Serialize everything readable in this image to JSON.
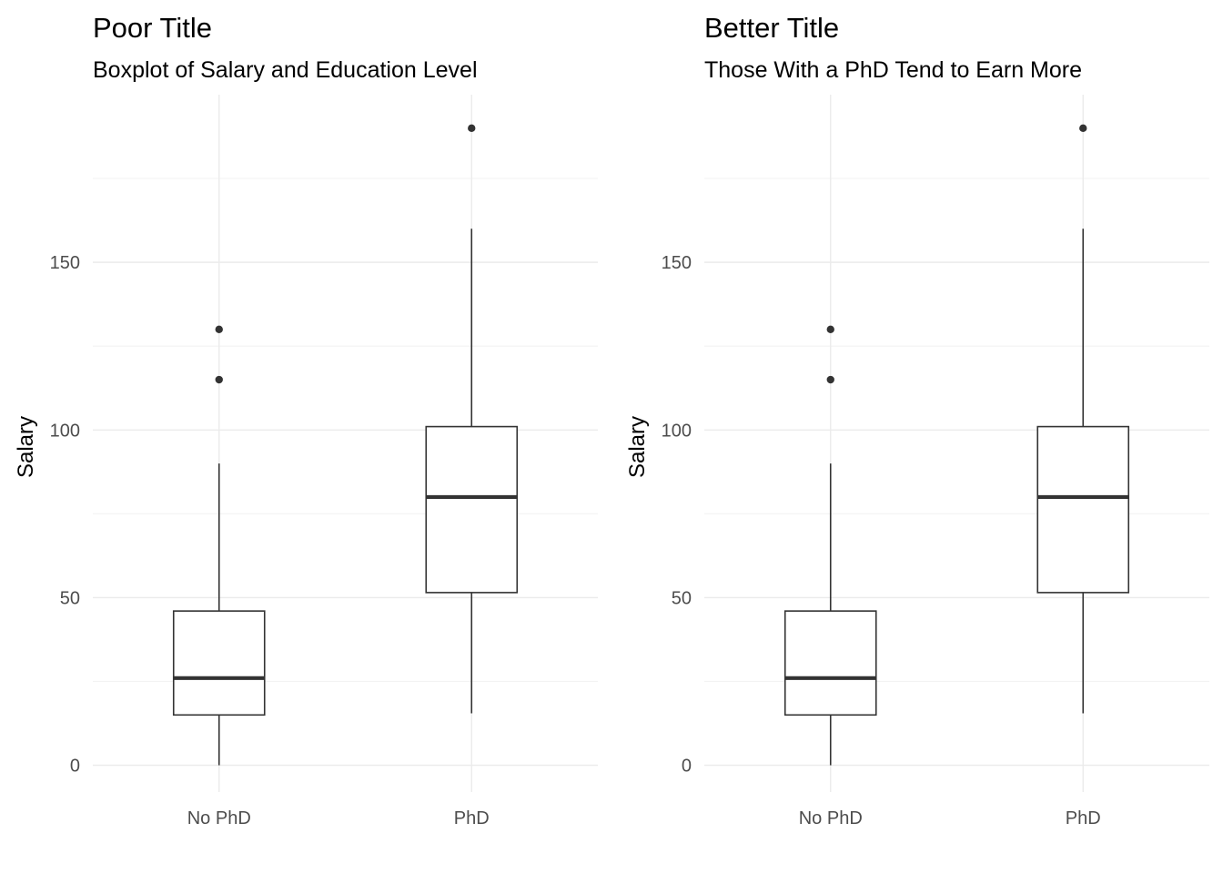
{
  "chart_data": [
    {
      "type": "box",
      "title": "Poor Title",
      "subtitle": "Boxplot of Salary and Education Level",
      "xlabel": "",
      "ylabel": "Salary",
      "categories": [
        "No PhD",
        "PhD"
      ],
      "yticks": [
        0,
        50,
        100,
        150
      ],
      "ylim": [
        -8,
        200
      ],
      "grid": true,
      "boxes": [
        {
          "category": "No PhD",
          "whisker_low": 0,
          "q1": 15,
          "median": 26,
          "q3": 46,
          "whisker_high": 90,
          "outliers": [
            115,
            130
          ]
        },
        {
          "category": "PhD",
          "whisker_low": 15.5,
          "q1": 51.5,
          "median": 80,
          "q3": 101,
          "whisker_high": 160,
          "outliers": [
            190
          ]
        }
      ]
    },
    {
      "type": "box",
      "title": "Better Title",
      "subtitle": "Those With a PhD Tend to Earn More",
      "xlabel": "",
      "ylabel": "Salary",
      "categories": [
        "No PhD",
        "PhD"
      ],
      "yticks": [
        0,
        50,
        100,
        150
      ],
      "ylim": [
        -8,
        200
      ],
      "grid": true,
      "boxes": [
        {
          "category": "No PhD",
          "whisker_low": 0,
          "q1": 15,
          "median": 26,
          "q3": 46,
          "whisker_high": 90,
          "outliers": [
            115,
            130
          ]
        },
        {
          "category": "PhD",
          "whisker_low": 15.5,
          "q1": 51.5,
          "median": 80,
          "q3": 101,
          "whisker_high": 160,
          "outliers": [
            190
          ]
        }
      ]
    }
  ],
  "colors": {
    "background": "#ffffff",
    "grid_major": "#ebebeb",
    "grid_minor": "#f3f3f3",
    "box_stroke": "#333333",
    "outlier_fill": "#333333",
    "title_text": "#000000",
    "tick_text": "#4d4d4d"
  }
}
